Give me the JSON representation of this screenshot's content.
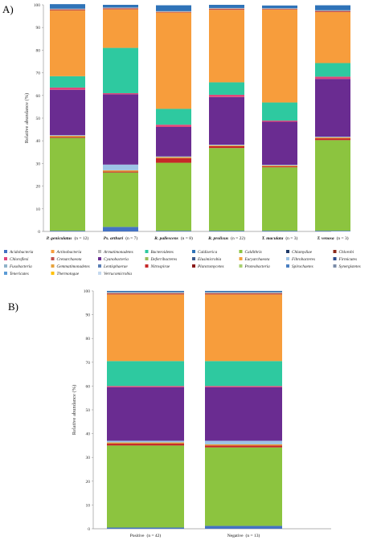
{
  "chart_data": [
    {
      "panel_label": "A)",
      "type": "bar",
      "stacked": true,
      "ylabel": "Relative abundance (%)",
      "ylim": [
        0,
        100
      ],
      "yticks": [
        0,
        10,
        20,
        30,
        40,
        50,
        60,
        70,
        80,
        90,
        100
      ],
      "grid": false,
      "categories": [
        {
          "name": "P. geniculatus",
          "n": "(n = 12)"
        },
        {
          "name": "Ps. arthuri",
          "n": "(n = 7)"
        },
        {
          "name": "R. pallescens",
          "n": "(n = 8)"
        },
        {
          "name": "R. prolixus",
          "n": "(n = 22)"
        },
        {
          "name": "T. maculata",
          "n": "(n = 3)"
        },
        {
          "name": "T. venosa",
          "n": "(n = 3)"
        }
      ],
      "series": [
        {
          "name": "Acidobacteria",
          "values": [
            0.3,
            2.0,
            0.3,
            0.3,
            0.3,
            0.3
          ]
        },
        {
          "name": "Caldithrix",
          "values": [
            41,
            24,
            30,
            36.5,
            28,
            40
          ]
        },
        {
          "name": "Nitrospirae",
          "values": [
            0.4,
            0.4,
            2.0,
            0.8,
            0.4,
            0.8
          ]
        },
        {
          "name": "Gemmatimonadetes",
          "values": [
            0.5,
            0.6,
            0.5,
            0.4,
            0.4,
            0.4
          ]
        },
        {
          "name": "Fibrobacteres",
          "values": [
            0.3,
            2.5,
            0.3,
            0.3,
            0.3,
            0.3
          ]
        },
        {
          "name": "Cyanobacteria",
          "values": [
            20,
            31,
            13,
            21,
            19,
            25.5
          ]
        },
        {
          "name": "Chloroflexi",
          "values": [
            1.0,
            0.5,
            1.0,
            1.0,
            0.5,
            1.0
          ]
        },
        {
          "name": "Bacteroidetes",
          "values": [
            5,
            20,
            7,
            5.5,
            8,
            6
          ]
        },
        {
          "name": "Actinobacteria",
          "values": [
            29,
            17,
            42.5,
            32,
            41,
            22.5
          ]
        },
        {
          "name": "Crenarchaeota",
          "values": [
            0.5,
            0.5,
            0.3,
            0.5,
            0.3,
            0.5
          ]
        },
        {
          "name": "Armatimonadetes",
          "values": [
            0.3,
            0.3,
            0.3,
            0.3,
            0.3,
            0.3
          ]
        },
        {
          "name": "Caldiserica",
          "values": [
            2.0,
            1.2,
            2.6,
            1.4,
            1.2,
            2.2
          ]
        }
      ]
    },
    {
      "panel_label": "B)",
      "type": "bar",
      "stacked": true,
      "ylabel": "Relative abundance (%)",
      "ylim": [
        0,
        100
      ],
      "yticks": [
        0,
        10,
        20,
        30,
        40,
        50,
        60,
        70,
        80,
        90,
        100
      ],
      "grid": false,
      "categories": [
        {
          "name": "Positive",
          "n": "(n = 42)"
        },
        {
          "name": "Negative",
          "n": "(n = 13)"
        }
      ],
      "series": [
        {
          "name": "Acidobacteria",
          "values": [
            0.5,
            1.2
          ]
        },
        {
          "name": "Caldithrix",
          "values": [
            34.5,
            33
          ]
        },
        {
          "name": "Nitrospirae",
          "values": [
            0.8,
            0.8
          ]
        },
        {
          "name": "Gemmatimonadetes",
          "values": [
            0.5,
            0.5
          ]
        },
        {
          "name": "Fibrobacteres",
          "values": [
            0.7,
            1.5
          ]
        },
        {
          "name": "Cyanobacteria",
          "values": [
            22.5,
            22.5
          ]
        },
        {
          "name": "Chloroflexi",
          "values": [
            0.5,
            0.5
          ]
        },
        {
          "name": "Bacteroidetes",
          "values": [
            10.5,
            10.5
          ]
        },
        {
          "name": "Actinobacteria",
          "values": [
            28,
            28
          ]
        },
        {
          "name": "Crenarchaeota",
          "values": [
            0.5,
            0.5
          ]
        },
        {
          "name": "Armatimonadetes",
          "values": [
            0.5,
            0.5
          ]
        },
        {
          "name": "Caldiserica",
          "values": [
            0.5,
            0.5
          ]
        }
      ]
    }
  ],
  "legend": {
    "placement": "between-panels",
    "entries": [
      {
        "name": "Acidobacteria",
        "color": "#4472c4"
      },
      {
        "name": "Actinobacteria",
        "color": "#f79d3c"
      },
      {
        "name": "Armatimonadetes",
        "color": "#b8b8b8"
      },
      {
        "name": "Bacteroidetes",
        "color": "#2ec9a0"
      },
      {
        "name": "Caldiserica",
        "color": "#2f73b8"
      },
      {
        "name": "Caldithrix",
        "color": "#8cc43f"
      },
      {
        "name": "Chlamydiae",
        "color": "#1f3a68"
      },
      {
        "name": "Chlorobi",
        "color": "#8b2a1a"
      },
      {
        "name": "Chloroflexi",
        "color": "#e0457b"
      },
      {
        "name": "Crenarchaeota",
        "color": "#c0504d"
      },
      {
        "name": "Cyanobacteria",
        "color": "#6a2c91"
      },
      {
        "name": "Deferribacteres",
        "color": "#9bbb59"
      },
      {
        "name": "Elusimicrobia",
        "color": "#3d5a8c"
      },
      {
        "name": "Euryarchaeota",
        "color": "#f2a13b"
      },
      {
        "name": "Fibrobacteres",
        "color": "#9dc3e6"
      },
      {
        "name": "Firmicutes",
        "color": "#2a4b8d"
      },
      {
        "name": "Fusobacteria",
        "color": "#8fb3c9"
      },
      {
        "name": "Gemmatimonadetes",
        "color": "#e6a23c"
      },
      {
        "name": "Lentisphaerae",
        "color": "#5a7fb5"
      },
      {
        "name": "Nitrospirae",
        "color": "#c62828"
      },
      {
        "name": "Planctomycetes",
        "color": "#8b1a1a"
      },
      {
        "name": "Proteobacteria",
        "color": "#a8d070"
      },
      {
        "name": "Spirochaetes",
        "color": "#4a7fc1"
      },
      {
        "name": "Synergistetes",
        "color": "#7a8ca8"
      },
      {
        "name": "Tenericutes",
        "color": "#5b9bd5"
      },
      {
        "name": "Thermotogae",
        "color": "#ffc000"
      },
      {
        "name": "Verrucomicrobia",
        "color": "#c5d9ef"
      }
    ]
  }
}
